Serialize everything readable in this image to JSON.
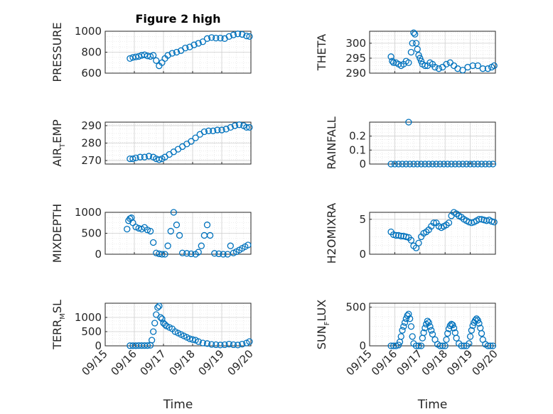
{
  "figure": {
    "title": "Figure 2 high",
    "marker_color": "#0072BD",
    "x_axis_label": "Time",
    "x_tick_labels": [
      "09/15",
      "09/16",
      "09/17",
      "09/18",
      "09/19",
      "09/20"
    ]
  },
  "chart_data": [
    {
      "type": "scatter",
      "name": "PRESSURE",
      "ylabel_main": "PRESSURE",
      "ylabel_sub": "",
      "ylabel_tail": "",
      "title": "Figure 2 high",
      "xlim": [
        15,
        20
      ],
      "ylim": [
        600,
        1000
      ],
      "yticks": [
        600,
        800,
        1000
      ],
      "grid": true,
      "xlabel": "Time",
      "x": [
        15.85,
        15.95,
        16.05,
        16.15,
        16.25,
        16.35,
        16.45,
        16.55,
        16.65,
        16.75,
        16.85,
        16.95,
        17.05,
        17.15,
        17.3,
        17.45,
        17.6,
        17.75,
        17.9,
        18.05,
        18.2,
        18.35,
        18.5,
        18.65,
        18.8,
        18.95,
        19.1,
        19.25,
        19.4,
        19.55,
        19.7,
        19.85,
        19.95
      ],
      "y": [
        740,
        750,
        755,
        760,
        770,
        775,
        765,
        760,
        770,
        720,
        670,
        700,
        740,
        770,
        790,
        800,
        815,
        840,
        850,
        870,
        885,
        900,
        930,
        940,
        935,
        935,
        930,
        950,
        965,
        975,
        970,
        955,
        950
      ]
    },
    {
      "type": "scatter",
      "name": "THETA",
      "ylabel_main": "THETA",
      "ylabel_sub": "",
      "ylabel_tail": "",
      "xlim": [
        15,
        20
      ],
      "ylim": [
        290,
        304
      ],
      "yticks": [
        290,
        295,
        300
      ],
      "grid": true,
      "xlabel": "Time",
      "x": [
        15.85,
        15.9,
        15.95,
        16.05,
        16.15,
        16.25,
        16.35,
        16.45,
        16.55,
        16.65,
        16.7,
        16.75,
        16.8,
        16.85,
        16.9,
        16.95,
        17.0,
        17.05,
        17.1,
        17.2,
        17.3,
        17.4,
        17.5,
        17.6,
        17.75,
        17.9,
        18.05,
        18.2,
        18.35,
        18.5,
        18.7,
        18.9,
        19.1,
        19.3,
        19.5,
        19.7,
        19.85,
        19.95
      ],
      "y": [
        295.5,
        294,
        293.5,
        293.5,
        293,
        292.5,
        293,
        294,
        293.5,
        297,
        300,
        303.5,
        303,
        300,
        298,
        296,
        295,
        294,
        293,
        292.5,
        292.5,
        293.5,
        293,
        292,
        291.5,
        292,
        293,
        293.5,
        292.5,
        291.5,
        291,
        292,
        292.5,
        292.5,
        291.5,
        291.5,
        292,
        292.5
      ]
    },
    {
      "type": "scatter",
      "name": "AIR_TEMP",
      "ylabel_main": "AIR",
      "ylabel_sub": "T",
      "ylabel_tail": "EMP",
      "xlim": [
        15,
        20
      ],
      "ylim": [
        268,
        292
      ],
      "yticks": [
        270,
        280,
        290
      ],
      "grid": true,
      "xlabel": "Time",
      "x": [
        15.85,
        15.95,
        16.05,
        16.2,
        16.35,
        16.5,
        16.65,
        16.75,
        16.85,
        16.95,
        17.05,
        17.2,
        17.35,
        17.5,
        17.65,
        17.8,
        17.95,
        18.1,
        18.25,
        18.4,
        18.55,
        18.7,
        18.85,
        19.0,
        19.15,
        19.3,
        19.45,
        19.6,
        19.75,
        19.85,
        19.95
      ],
      "y": [
        271,
        271,
        271.5,
        272,
        272,
        272.5,
        272,
        271,
        270.5,
        271,
        272,
        273.5,
        275,
        276.5,
        278,
        279.5,
        281,
        283,
        285,
        286.5,
        287,
        287,
        287.5,
        287.5,
        288,
        289,
        290,
        290.5,
        290,
        289,
        289
      ]
    },
    {
      "type": "scatter",
      "name": "RAINFALL",
      "ylabel_main": "RAINFALL",
      "ylabel_sub": "",
      "ylabel_tail": "",
      "xlim": [
        15,
        20
      ],
      "ylim": [
        0,
        0.3
      ],
      "yticks": [
        0,
        0.1,
        0.2
      ],
      "grid": true,
      "xlabel": "Time",
      "x": [
        15.85,
        16.0,
        16.15,
        16.3,
        16.45,
        16.6,
        16.75,
        16.9,
        17.05,
        17.2,
        17.35,
        17.5,
        17.65,
        17.8,
        17.95,
        18.1,
        18.25,
        18.4,
        18.55,
        18.7,
        18.85,
        19.0,
        19.15,
        19.3,
        19.45,
        19.6,
        19.75,
        19.9,
        16.55
      ],
      "y": [
        0,
        0,
        0,
        0,
        0,
        0,
        0,
        0,
        0,
        0,
        0,
        0,
        0,
        0,
        0,
        0,
        0,
        0,
        0,
        0,
        0,
        0,
        0,
        0,
        0,
        0,
        0,
        0,
        0.3
      ]
    },
    {
      "type": "scatter",
      "name": "MIXDEPTH",
      "ylabel_main": "MIXDEPTH",
      "ylabel_sub": "",
      "ylabel_tail": "",
      "xlim": [
        15,
        20
      ],
      "ylim": [
        0,
        1000
      ],
      "yticks": [
        0,
        500,
        1000
      ],
      "grid": true,
      "xlabel": "Time",
      "x": [
        15.75,
        15.8,
        15.85,
        15.9,
        15.95,
        16.05,
        16.15,
        16.25,
        16.35,
        16.45,
        16.55,
        16.65,
        16.75,
        16.85,
        16.95,
        17.05,
        17.15,
        17.25,
        17.35,
        17.45,
        17.55,
        17.65,
        17.8,
        17.95,
        18.1,
        18.2,
        18.3,
        18.4,
        18.5,
        18.6,
        18.75,
        18.9,
        19.05,
        19.2,
        19.3,
        19.4,
        19.5,
        19.6,
        19.7,
        19.8,
        19.9
      ],
      "y": [
        600,
        800,
        850,
        870,
        750,
        650,
        620,
        600,
        640,
        580,
        550,
        280,
        30,
        10,
        0,
        0,
        200,
        550,
        1000,
        700,
        450,
        30,
        20,
        10,
        0,
        50,
        200,
        450,
        700,
        450,
        20,
        10,
        0,
        0,
        200,
        30,
        60,
        100,
        140,
        180,
        220
      ]
    },
    {
      "type": "scatter",
      "name": "H2OMIXRA",
      "ylabel_main": "H2OMIXRA",
      "ylabel_sub": "",
      "ylabel_tail": "",
      "xlim": [
        15,
        20
      ],
      "ylim": [
        0,
        6
      ],
      "yticks": [
        0,
        5
      ],
      "grid": true,
      "xlabel": "Time",
      "x": [
        15.85,
        15.95,
        16.05,
        16.15,
        16.25,
        16.35,
        16.45,
        16.55,
        16.65,
        16.75,
        16.85,
        16.95,
        17.05,
        17.15,
        17.25,
        17.35,
        17.45,
        17.55,
        17.65,
        17.75,
        17.85,
        17.95,
        18.05,
        18.15,
        18.25,
        18.35,
        18.45,
        18.55,
        18.65,
        18.75,
        18.85,
        18.95,
        19.05,
        19.15,
        19.25,
        19.35,
        19.45,
        19.55,
        19.65,
        19.75,
        19.85,
        19.95
      ],
      "y": [
        3.2,
        2.8,
        2.7,
        2.7,
        2.6,
        2.6,
        2.5,
        2.4,
        2.0,
        1.2,
        0.9,
        1.6,
        2.5,
        3.0,
        3.2,
        3.5,
        4.0,
        4.5,
        4.5,
        4.0,
        3.8,
        4.0,
        4.2,
        4.5,
        5.5,
        6.0,
        5.8,
        5.5,
        5.3,
        5.0,
        4.8,
        4.6,
        4.5,
        4.6,
        4.8,
        5.0,
        5.0,
        4.9,
        4.8,
        4.9,
        4.7,
        4.6
      ]
    },
    {
      "type": "scatter",
      "name": "TERR_MSL",
      "ylabel_main": "TERR",
      "ylabel_sub": "M",
      "ylabel_tail": "SL",
      "xlim": [
        15,
        20
      ],
      "ylim": [
        0,
        1500
      ],
      "yticks": [
        0,
        500,
        1000
      ],
      "grid": true,
      "xlabel": "Time",
      "x": [
        15.85,
        15.95,
        16.05,
        16.15,
        16.25,
        16.35,
        16.45,
        16.55,
        16.6,
        16.65,
        16.7,
        16.75,
        16.8,
        16.85,
        16.9,
        16.95,
        17.0,
        17.05,
        17.1,
        17.2,
        17.3,
        17.4,
        17.5,
        17.6,
        17.7,
        17.8,
        17.9,
        18.0,
        18.1,
        18.2,
        18.35,
        18.5,
        18.65,
        18.8,
        18.95,
        19.1,
        19.25,
        19.4,
        19.55,
        19.7,
        19.85,
        19.95
      ],
      "y": [
        5,
        5,
        5,
        10,
        10,
        10,
        10,
        20,
        200,
        500,
        800,
        1100,
        1350,
        1400,
        1000,
        950,
        800,
        750,
        700,
        650,
        600,
        500,
        450,
        400,
        350,
        300,
        250,
        220,
        200,
        150,
        100,
        80,
        50,
        40,
        30,
        40,
        60,
        40,
        30,
        60,
        100,
        150
      ]
    },
    {
      "type": "scatter",
      "name": "SUN_FLUX",
      "ylabel_main": "SUN",
      "ylabel_sub": "F",
      "ylabel_tail": "LUX",
      "xlim": [
        15,
        20
      ],
      "ylim": [
        0,
        550
      ],
      "yticks": [
        0,
        500
      ],
      "grid": true,
      "xlabel": "Time",
      "x": [
        15.85,
        15.95,
        16.05,
        16.15,
        16.2,
        16.25,
        16.3,
        16.35,
        16.4,
        16.45,
        16.5,
        16.55,
        16.6,
        16.65,
        16.7,
        16.75,
        16.85,
        16.95,
        17.05,
        17.1,
        17.15,
        17.2,
        17.25,
        17.3,
        17.35,
        17.4,
        17.45,
        17.5,
        17.6,
        17.7,
        17.8,
        17.9,
        18.0,
        18.05,
        18.1,
        18.15,
        18.2,
        18.25,
        18.3,
        18.35,
        18.4,
        18.45,
        18.55,
        18.65,
        18.75,
        18.85,
        18.95,
        19.0,
        19.05,
        19.1,
        19.15,
        19.2,
        19.25,
        19.3,
        19.35,
        19.4,
        19.45,
        19.5,
        19.6,
        19.7,
        19.8,
        19.9
      ],
      "y": [
        0,
        0,
        0,
        10,
        50,
        120,
        200,
        250,
        300,
        350,
        390,
        410,
        350,
        250,
        120,
        30,
        0,
        0,
        0,
        100,
        170,
        230,
        280,
        320,
        300,
        250,
        200,
        150,
        80,
        20,
        0,
        0,
        0,
        80,
        160,
        220,
        260,
        280,
        270,
        230,
        170,
        100,
        30,
        0,
        0,
        0,
        30,
        120,
        200,
        260,
        300,
        330,
        350,
        330,
        290,
        230,
        160,
        80,
        20,
        0,
        0,
        0
      ]
    }
  ]
}
